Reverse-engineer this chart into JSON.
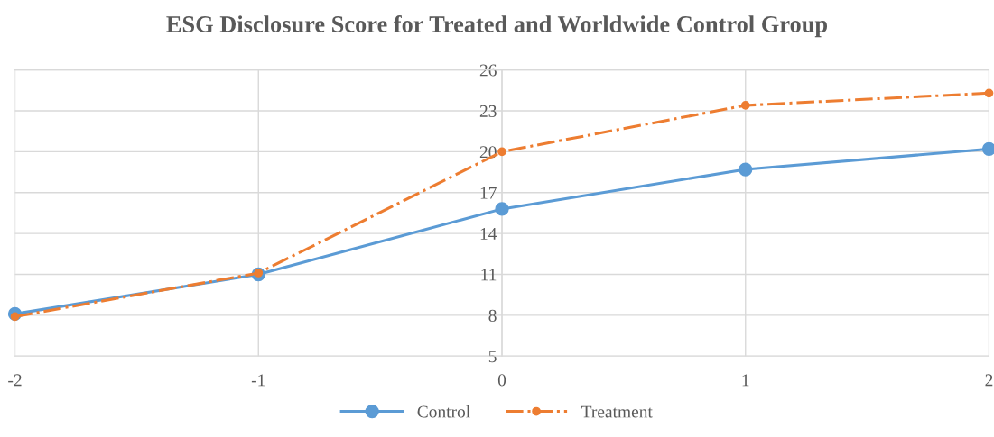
{
  "chart_data": {
    "type": "line",
    "title": "ESG Disclosure Score for Treated and Worldwide Control Group",
    "x": [
      -2,
      -1,
      0,
      1,
      2
    ],
    "series": [
      {
        "name": "Control",
        "color": "#5b9bd5",
        "values": [
          8.1,
          11.0,
          15.8,
          18.7,
          20.2
        ],
        "line_style": "solid"
      },
      {
        "name": "Treatment",
        "color": "#ed7d31",
        "values": [
          7.9,
          11.1,
          20.0,
          23.4,
          24.3
        ],
        "line_style": "dashdot"
      }
    ],
    "xlim": [
      -2,
      2
    ],
    "xticks": [
      -2,
      -1,
      0,
      1,
      2
    ],
    "ylim": [
      5,
      26
    ],
    "yticks": [
      5,
      8,
      11,
      14,
      17,
      20,
      23,
      26
    ],
    "grid": true,
    "legend": "bottom",
    "marker": "circle"
  }
}
